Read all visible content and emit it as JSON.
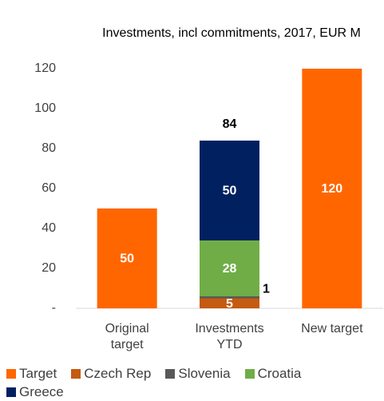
{
  "chart_data": {
    "type": "stacked_bar",
    "title": "Investments, incl commitments, 2017, EUR M",
    "categories": [
      "Original target",
      "Investments YTD",
      "New target"
    ],
    "series": [
      {
        "name": "Target",
        "color": "#FF6600",
        "values": [
          50,
          null,
          120
        ]
      },
      {
        "name": "Czech Rep",
        "color": "#C55A11",
        "values": [
          null,
          5,
          null
        ]
      },
      {
        "name": "Slovenia",
        "color": "#595959",
        "values": [
          null,
          1,
          null
        ]
      },
      {
        "name": "Croatia",
        "color": "#70AD47",
        "values": [
          null,
          28,
          null
        ]
      },
      {
        "name": "Greece",
        "color": "#002060",
        "values": [
          null,
          50,
          null
        ]
      }
    ],
    "totals": [
      null,
      84,
      null
    ],
    "ylim": [
      0,
      120
    ],
    "yticks": [
      {
        "value": 0,
        "label": "-"
      },
      20,
      40,
      60,
      80,
      100,
      120
    ],
    "grid": false,
    "legend": "bottom"
  }
}
